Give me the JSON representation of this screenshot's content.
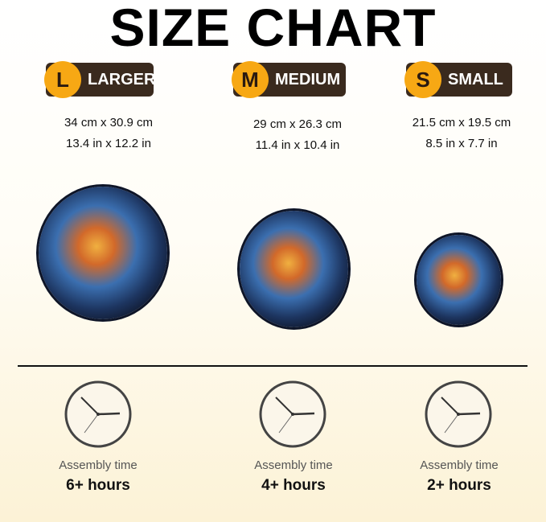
{
  "title": "SIZE CHART",
  "sizes": [
    {
      "letter": "L",
      "label": "LARGER",
      "cm": "34 cm x 30.9 cm",
      "in": "13.4 in x 12.2 in",
      "assembly_label": "Assembly time",
      "assembly": "6+ hours"
    },
    {
      "letter": "M",
      "label": "MEDIUM",
      "cm": "29 cm x 26.3 cm",
      "in": "11.4 in x 10.4 in",
      "assembly_label": "Assembly time",
      "assembly": "4+ hours"
    },
    {
      "letter": "S",
      "label": "SMALL",
      "cm": "21.5 cm x 19.5 cm",
      "in": "8.5 in x 7.7 in",
      "assembly_label": "Assembly time",
      "assembly": "2+ hours"
    }
  ],
  "colors": {
    "badge_bg": "#3a2a1e",
    "badge_circle": "#f7a814"
  },
  "icons": [
    "clock-icon",
    "wolf-puzzle-image"
  ]
}
